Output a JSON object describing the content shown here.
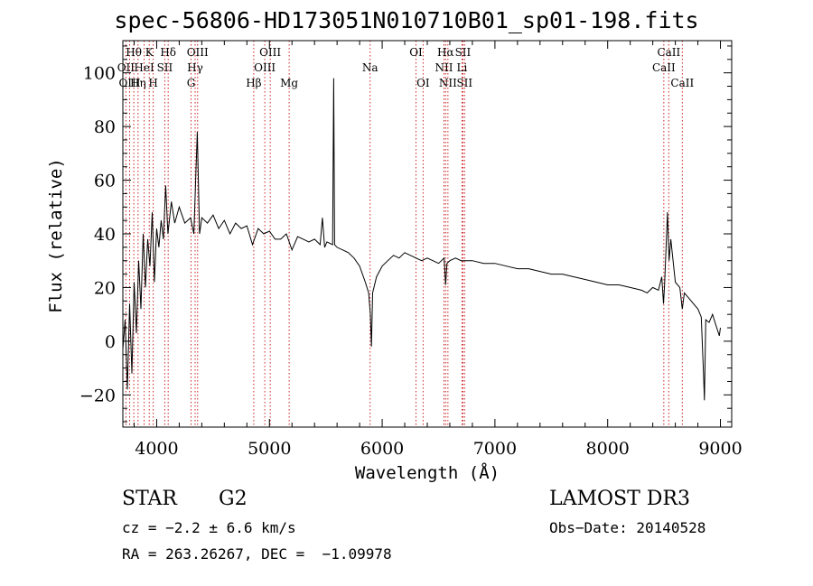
{
  "chart_data": {
    "type": "line",
    "title": "spec-56806-HD173051N010710B01_sp01-198.fits",
    "xlabel": "Wavelength (Å)",
    "ylabel": "Flux (relative)",
    "xlim": [
      3700,
      9100
    ],
    "ylim": [
      -32,
      112
    ],
    "xticks": [
      4000,
      5000,
      6000,
      7000,
      8000,
      9000
    ],
    "yticks": [
      -20,
      0,
      20,
      40,
      60,
      80,
      100
    ],
    "grid": false,
    "series": [
      {
        "name": "spectrum",
        "color": "#000000",
        "points": [
          [
            3700,
            -3
          ],
          [
            3720,
            8
          ],
          [
            3740,
            -18
          ],
          [
            3760,
            14
          ],
          [
            3780,
            -12
          ],
          [
            3800,
            22
          ],
          [
            3820,
            3
          ],
          [
            3840,
            30
          ],
          [
            3860,
            12
          ],
          [
            3880,
            40
          ],
          [
            3900,
            20
          ],
          [
            3920,
            38
          ],
          [
            3940,
            28
          ],
          [
            3960,
            48
          ],
          [
            3980,
            22
          ],
          [
            4000,
            42
          ],
          [
            4020,
            35
          ],
          [
            4040,
            45
          ],
          [
            4060,
            38
          ],
          [
            4080,
            58
          ],
          [
            4100,
            40
          ],
          [
            4130,
            52
          ],
          [
            4160,
            44
          ],
          [
            4200,
            50
          ],
          [
            4250,
            44
          ],
          [
            4300,
            46
          ],
          [
            4330,
            40
          ],
          [
            4360,
            78
          ],
          [
            4380,
            40
          ],
          [
            4400,
            46
          ],
          [
            4450,
            44
          ],
          [
            4500,
            47
          ],
          [
            4550,
            42
          ],
          [
            4600,
            45
          ],
          [
            4650,
            40
          ],
          [
            4700,
            44
          ],
          [
            4750,
            42
          ],
          [
            4800,
            43
          ],
          [
            4850,
            36
          ],
          [
            4900,
            42
          ],
          [
            4950,
            40
          ],
          [
            5000,
            41
          ],
          [
            5050,
            38
          ],
          [
            5100,
            38
          ],
          [
            5150,
            40
          ],
          [
            5200,
            34
          ],
          [
            5250,
            39
          ],
          [
            5300,
            38
          ],
          [
            5350,
            37
          ],
          [
            5400,
            38
          ],
          [
            5450,
            36
          ],
          [
            5470,
            46
          ],
          [
            5490,
            35
          ],
          [
            5510,
            37
          ],
          [
            5560,
            36
          ],
          [
            5570,
            98
          ],
          [
            5578,
            36
          ],
          [
            5600,
            35
          ],
          [
            5650,
            34
          ],
          [
            5700,
            33
          ],
          [
            5750,
            31
          ],
          [
            5800,
            28
          ],
          [
            5850,
            22
          ],
          [
            5880,
            18
          ],
          [
            5895,
            10
          ],
          [
            5905,
            -2
          ],
          [
            5915,
            18
          ],
          [
            5950,
            24
          ],
          [
            6000,
            28
          ],
          [
            6050,
            30
          ],
          [
            6100,
            32
          ],
          [
            6150,
            31
          ],
          [
            6200,
            33
          ],
          [
            6250,
            32
          ],
          [
            6300,
            31
          ],
          [
            6350,
            30
          ],
          [
            6400,
            31
          ],
          [
            6450,
            30
          ],
          [
            6500,
            29
          ],
          [
            6550,
            31
          ],
          [
            6563,
            21
          ],
          [
            6575,
            29
          ],
          [
            6600,
            30
          ],
          [
            6650,
            31
          ],
          [
            6700,
            30
          ],
          [
            6750,
            30
          ],
          [
            6800,
            30
          ],
          [
            6900,
            29
          ],
          [
            7000,
            29
          ],
          [
            7100,
            28
          ],
          [
            7200,
            27
          ],
          [
            7300,
            27
          ],
          [
            7400,
            26
          ],
          [
            7500,
            25
          ],
          [
            7600,
            25
          ],
          [
            7700,
            24
          ],
          [
            7800,
            23
          ],
          [
            7900,
            22
          ],
          [
            8000,
            21
          ],
          [
            8100,
            21
          ],
          [
            8200,
            20
          ],
          [
            8300,
            19
          ],
          [
            8350,
            18
          ],
          [
            8400,
            20
          ],
          [
            8450,
            19
          ],
          [
            8480,
            24
          ],
          [
            8495,
            14
          ],
          [
            8505,
            21
          ],
          [
            8530,
            48
          ],
          [
            8545,
            30
          ],
          [
            8560,
            38
          ],
          [
            8600,
            22
          ],
          [
            8640,
            20
          ],
          [
            8662,
            12
          ],
          [
            8680,
            18
          ],
          [
            8720,
            16
          ],
          [
            8760,
            14
          ],
          [
            8800,
            12
          ],
          [
            8830,
            9
          ],
          [
            8850,
            -12
          ],
          [
            8858,
            -22
          ],
          [
            8870,
            8
          ],
          [
            8900,
            7
          ],
          [
            8930,
            10
          ],
          [
            8960,
            6
          ],
          [
            8990,
            2
          ],
          [
            9000,
            5
          ]
        ]
      }
    ],
    "line_labels": [
      {
        "text": "Hθ",
        "x": 3797,
        "row": 1
      },
      {
        "text": "OII",
        "x": 3727,
        "row": 2
      },
      {
        "text": "OIII",
        "x": 3760,
        "row": 3
      },
      {
        "text": "K",
        "x": 3934,
        "row": 1
      },
      {
        "text": "HeI",
        "x": 3889,
        "row": 2
      },
      {
        "text": "Hη",
        "x": 3835,
        "row": 3
      },
      {
        "text": "Hδ",
        "x": 4102,
        "row": 1
      },
      {
        "text": "SII",
        "x": 4072,
        "row": 2
      },
      {
        "text": "H",
        "x": 3969,
        "row": 3
      },
      {
        "text": "OIII",
        "x": 4363,
        "row": 1
      },
      {
        "text": "Hγ",
        "x": 4341,
        "row": 2
      },
      {
        "text": "G",
        "x": 4305,
        "row": 3
      },
      {
        "text": "OIII",
        "x": 5007,
        "row": 1
      },
      {
        "text": "OIII",
        "x": 4959,
        "row": 2
      },
      {
        "text": "Hβ",
        "x": 4861,
        "row": 3
      },
      {
        "text": "Mg",
        "x": 5175,
        "row": 3
      },
      {
        "text": "Na",
        "x": 5893,
        "row": 2
      },
      {
        "text": "OI",
        "x": 6300,
        "row": 1
      },
      {
        "text": "OI",
        "x": 6363,
        "row": 3
      },
      {
        "text": "Hα",
        "x": 6563,
        "row": 1
      },
      {
        "text": "NII",
        "x": 6548,
        "row": 2
      },
      {
        "text": "NII",
        "x": 6583,
        "row": 3
      },
      {
        "text": "SII",
        "x": 6716,
        "row": 1
      },
      {
        "text": "Li",
        "x": 6708,
        "row": 2
      },
      {
        "text": "SII",
        "x": 6731,
        "row": 3
      },
      {
        "text": "CaII",
        "x": 8542,
        "row": 1
      },
      {
        "text": "CaII",
        "x": 8498,
        "row": 2
      },
      {
        "text": "CaII",
        "x": 8662,
        "row": 3
      }
    ]
  },
  "info": {
    "object_class": "STAR",
    "subclass": "G2",
    "cz": "cz = −2.2 ± 6.6 km/s",
    "coords": "RA = 263.26267, DEC =  −1.09978",
    "survey": "LAMOST DR3",
    "obs_date": "Obs−Date: 20140528"
  }
}
